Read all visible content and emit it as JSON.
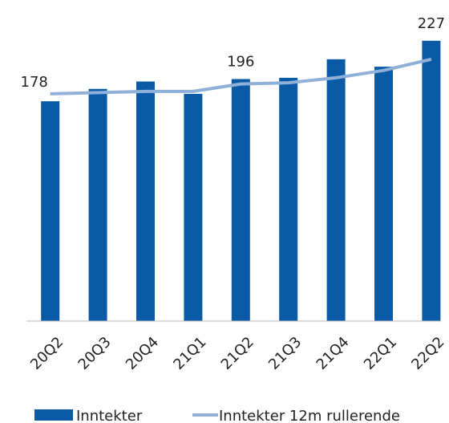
{
  "chart_data": {
    "type": "bar",
    "categories": [
      "20Q2",
      "20Q3",
      "20Q4",
      "21Q1",
      "21Q2",
      "21Q3",
      "21Q4",
      "22Q1",
      "22Q2"
    ],
    "series": [
      {
        "name": "Inntekter",
        "color": "#0b5aa6",
        "values": [
          178,
          188,
          194,
          184,
          196,
          197,
          212,
          206,
          227
        ],
        "value_labels": [
          "178",
          null,
          null,
          null,
          "196",
          null,
          null,
          null,
          "227"
        ]
      },
      {
        "name": "Inntekter 12m rullerende",
        "color": "#8fb0d8",
        "type": "line",
        "values": [
          184,
          185,
          186,
          186,
          192,
          193,
          197,
          203,
          212
        ]
      }
    ],
    "ylim": [
      0,
      260
    ]
  }
}
